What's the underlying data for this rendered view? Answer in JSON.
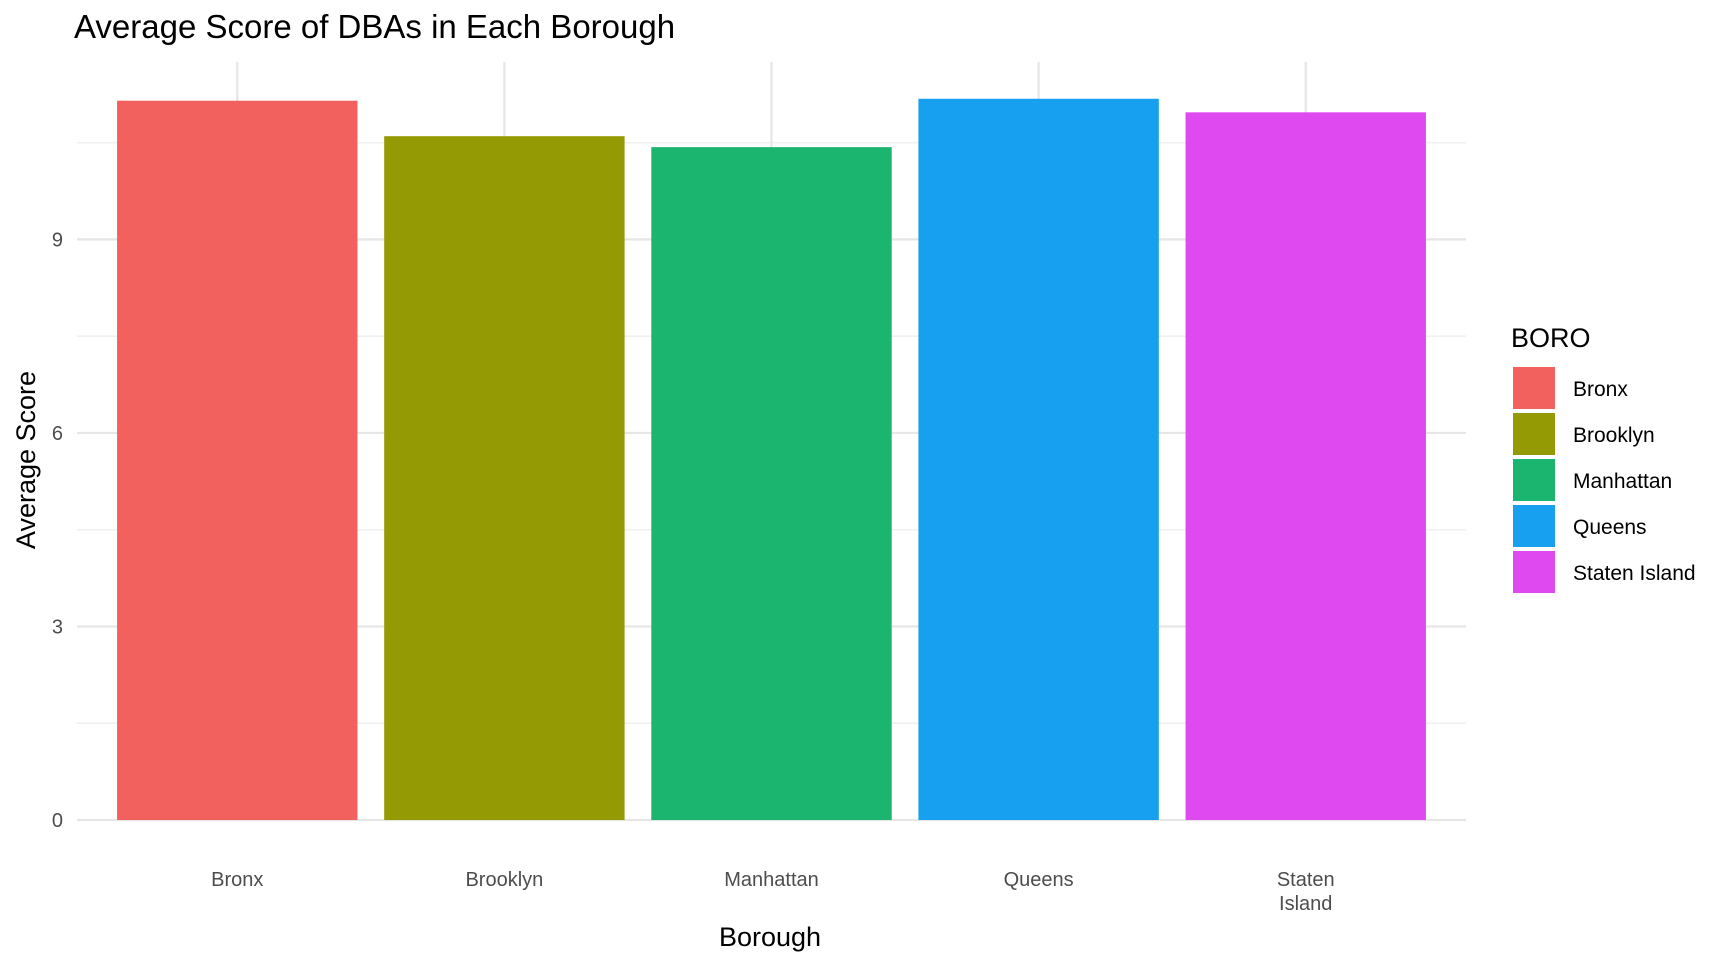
{
  "chart_data": {
    "type": "bar",
    "title": "Average Score of DBAs in Each Borough",
    "xlabel": "Borough",
    "ylabel": "Average Score",
    "categories": [
      "Bronx",
      "Brooklyn",
      "Manhattan",
      "Queens",
      "Staten Island"
    ],
    "category_tick_lines": [
      [
        "Bronx"
      ],
      [
        "Brooklyn"
      ],
      [
        "Manhattan"
      ],
      [
        "Queens"
      ],
      [
        "Staten",
        "Island"
      ]
    ],
    "values": [
      11.15,
      10.6,
      10.43,
      11.18,
      10.97
    ],
    "colors": [
      "#F2615E",
      "#939A03",
      "#1BB56F",
      "#17A0F0",
      "#DF4AF0"
    ],
    "ylim": [
      0,
      11.75
    ],
    "yticks": [
      0,
      3,
      6,
      9
    ],
    "grid": true,
    "legend": {
      "title": "BORO",
      "position": "right",
      "entries": [
        "Bronx",
        "Brooklyn",
        "Manhattan",
        "Queens",
        "Staten Island"
      ]
    }
  }
}
